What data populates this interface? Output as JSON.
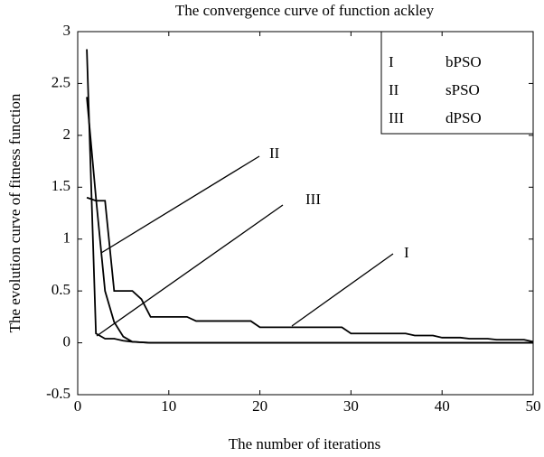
{
  "chart_data": {
    "type": "line",
    "title": "The convergence curve of function ackley",
    "xlabel": "The number of iterations",
    "ylabel": "The evolution curve of fitness function",
    "x": [
      1,
      2,
      3,
      4,
      5,
      6,
      7,
      8,
      9,
      10,
      11,
      12,
      13,
      14,
      15,
      16,
      17,
      18,
      19,
      20,
      21,
      22,
      23,
      24,
      25,
      26,
      27,
      28,
      29,
      30,
      31,
      32,
      33,
      34,
      35,
      36,
      37,
      38,
      39,
      40,
      41,
      42,
      43,
      44,
      45,
      46,
      47,
      48,
      49,
      50
    ],
    "series": [
      {
        "name": "bPSO",
        "tag": "I",
        "color": "#000000",
        "values": [
          1.4,
          1.37,
          1.37,
          0.5,
          0.5,
          0.5,
          0.42,
          0.25,
          0.25,
          0.25,
          0.25,
          0.25,
          0.21,
          0.21,
          0.21,
          0.21,
          0.21,
          0.21,
          0.21,
          0.15,
          0.15,
          0.15,
          0.15,
          0.15,
          0.15,
          0.15,
          0.15,
          0.15,
          0.15,
          0.09,
          0.09,
          0.09,
          0.09,
          0.09,
          0.09,
          0.09,
          0.07,
          0.07,
          0.07,
          0.05,
          0.05,
          0.05,
          0.04,
          0.04,
          0.04,
          0.03,
          0.03,
          0.03,
          0.03,
          0.01
        ]
      },
      {
        "name": "sPSO",
        "tag": "II",
        "color": "#000000",
        "values": [
          2.37,
          1.4,
          0.5,
          0.2,
          0.06,
          0.01,
          0.005,
          0,
          0,
          0,
          0,
          0,
          0,
          0,
          0,
          0,
          0,
          0,
          0,
          0,
          0,
          0,
          0,
          0,
          0,
          0,
          0,
          0,
          0,
          0,
          0,
          0,
          0,
          0,
          0,
          0,
          0,
          0,
          0,
          0,
          0,
          0,
          0,
          0,
          0,
          0,
          0,
          0,
          0,
          0
        ]
      },
      {
        "name": "dPSO",
        "tag": "III",
        "color": "#000000",
        "values": [
          2.83,
          0.09,
          0.04,
          0.04,
          0.02,
          0.01,
          0.005,
          0,
          0,
          0,
          0,
          0,
          0,
          0,
          0,
          0,
          0,
          0,
          0,
          0,
          0,
          0,
          0,
          0,
          0,
          0,
          0,
          0,
          0,
          0,
          0,
          0,
          0,
          0,
          0,
          0,
          0,
          0,
          0,
          0,
          0,
          0,
          0,
          0,
          0,
          0,
          0,
          0,
          0,
          0
        ]
      }
    ],
    "xlim": [
      0,
      50
    ],
    "xticks": [
      0,
      10,
      20,
      30,
      40,
      50
    ],
    "ylim": [
      -0.5,
      3
    ],
    "yticks": [
      -0.5,
      0,
      0.5,
      1,
      1.5,
      2,
      2.5,
      3
    ],
    "grid": false,
    "legend": "upper right"
  }
}
